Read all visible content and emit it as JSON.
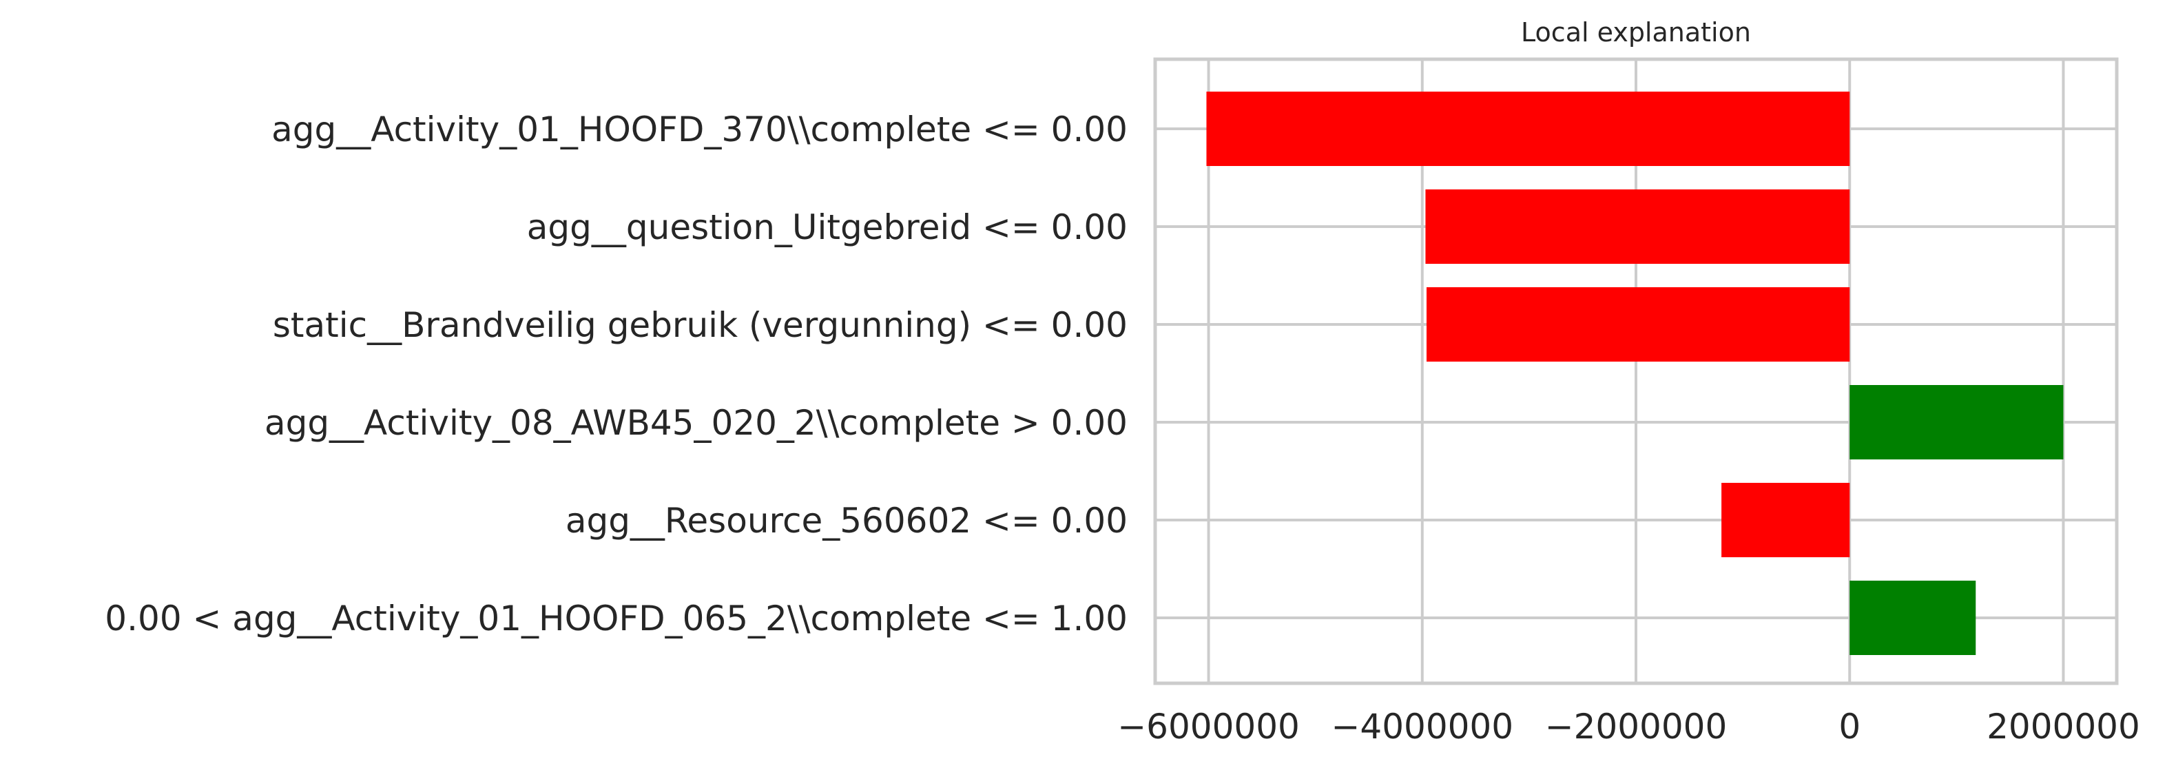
{
  "chart_data": {
    "type": "bar",
    "orientation": "horizontal",
    "title": "Local explanation",
    "xlabel": "",
    "ylabel": "",
    "xlim": [
      -6500000,
      2500000
    ],
    "xticks": [
      -6000000,
      -4000000,
      -2000000,
      0,
      2000000
    ],
    "xtick_labels": [
      "−6000000",
      "−4000000",
      "−2000000",
      "0",
      "2000000"
    ],
    "grid": true,
    "colors": {
      "negative": "#ff0000",
      "positive": "#008000",
      "grid": "#cccccc",
      "text": "#262626"
    },
    "categories": [
      "agg__Activity_01_HOOFD_370\\\\complete <= 0.00",
      "agg__question_Uitgebreid <= 0.00",
      "static__Brandveilig gebruik (vergunning) <= 0.00",
      "agg__Activity_08_AWB45_020_2\\\\complete > 0.00",
      "agg__Resource_560602 <= 0.00",
      "0.00 < agg__Activity_01_HOOFD_065_2\\\\complete <= 1.00"
    ],
    "values": [
      -6020000,
      -3970000,
      -3960000,
      2000000,
      -1200000,
      1180000
    ]
  }
}
